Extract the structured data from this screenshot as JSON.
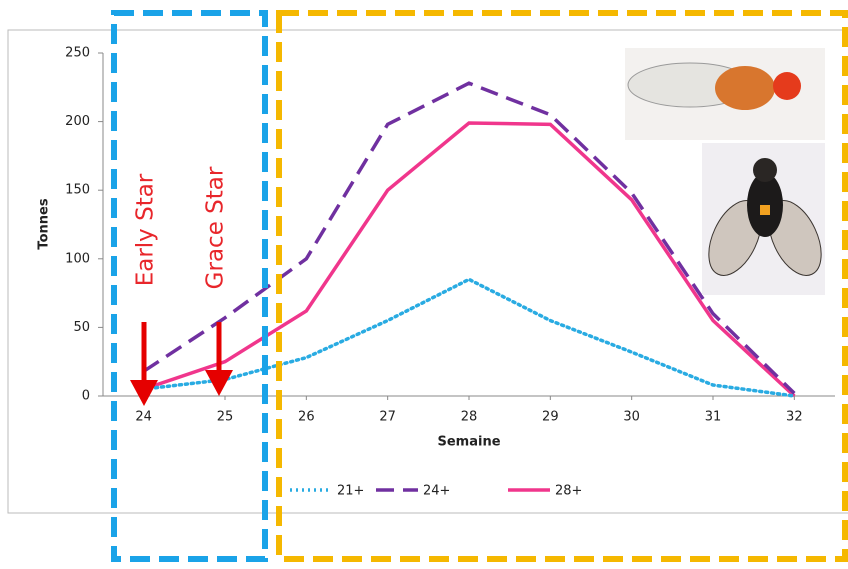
{
  "chart_data": {
    "type": "line",
    "x_label": "Semaine",
    "y_label": "Tonnes",
    "x": [
      24,
      25,
      26,
      27,
      28,
      29,
      30,
      31,
      32
    ],
    "xlim": [
      23.5,
      32.5
    ],
    "xticks": [
      24,
      25,
      26,
      27,
      28,
      29,
      30,
      31,
      32
    ],
    "ylim": [
      0,
      250
    ],
    "yticks": [
      0,
      50,
      100,
      150,
      200,
      250
    ],
    "series": [
      {
        "name": "21+",
        "color": "#29abe2",
        "style": "dotted",
        "values": [
          5,
          12,
          28,
          55,
          85,
          55,
          32,
          8,
          0
        ]
      },
      {
        "name": "24+",
        "color": "#7030a0",
        "style": "dashed",
        "values": [
          18,
          57,
          100,
          198,
          228,
          205,
          148,
          60,
          2
        ]
      },
      {
        "name": "28+",
        "color": "#f0368c",
        "style": "solid",
        "values": [
          5,
          25,
          62,
          150,
          199,
          198,
          143,
          55,
          0
        ]
      }
    ],
    "annotations": [
      "Early Star",
      "Grace Star"
    ]
  }
}
